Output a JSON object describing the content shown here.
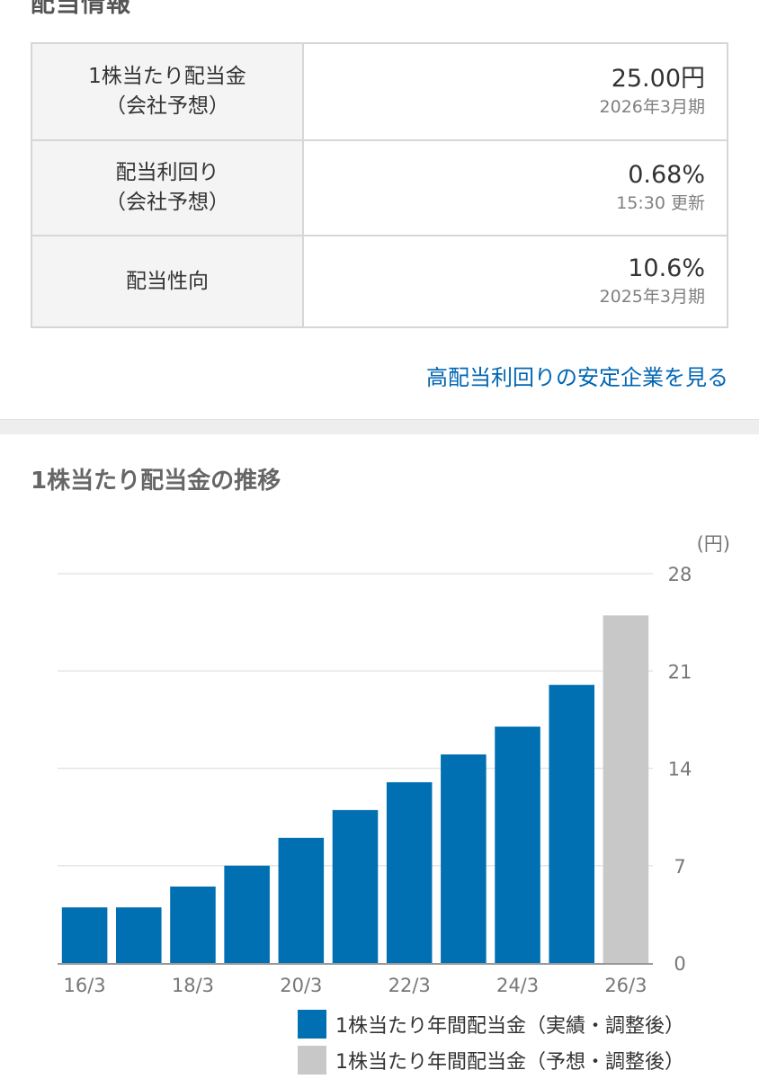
{
  "section_title": "配当情報",
  "dividend_table": [
    {
      "label_lines": [
        "1株当たり配当金",
        "（会社予想）"
      ],
      "value": "25.00円",
      "sub": "2026年3月期"
    },
    {
      "label_lines": [
        "配当利回り",
        "（会社予想）"
      ],
      "value": "0.68%",
      "sub": "15:30 更新"
    },
    {
      "label_lines": [
        "配当性向"
      ],
      "value": "10.6%",
      "sub": "2025年3月期"
    }
  ],
  "link_text": "高配当利回りの安定企業を見る",
  "chart_title": "1株当たり配当金の推移",
  "chart_data": {
    "type": "bar",
    "unit_label": "(円)",
    "categories": [
      "16/3",
      "17/3",
      "18/3",
      "19/3",
      "20/3",
      "21/3",
      "22/3",
      "23/3",
      "24/3",
      "25/3",
      "26/3"
    ],
    "x_tick_labels": [
      "16/3",
      "18/3",
      "20/3",
      "22/3",
      "24/3",
      "26/3"
    ],
    "values": [
      4,
      4,
      5.5,
      7,
      9,
      11,
      13,
      15,
      17,
      20,
      25
    ],
    "forecast": [
      false,
      false,
      false,
      false,
      false,
      false,
      false,
      false,
      false,
      false,
      true
    ],
    "ylim": [
      0,
      28
    ],
    "y_ticks": [
      0,
      7,
      14,
      21,
      28
    ],
    "grid": true,
    "legend_position": "bottom-right",
    "colors": {
      "actual": "#0070b2",
      "forecast": "#c8c8c8",
      "grid": "#e6e6e6",
      "axis": "#999999"
    },
    "series": [
      {
        "name": "1株当たり年間配当金（実績・調整後）",
        "color": "#0070b2"
      },
      {
        "name": "1株当たり年間配当金（予想・調整後）",
        "color": "#c8c8c8"
      }
    ]
  }
}
